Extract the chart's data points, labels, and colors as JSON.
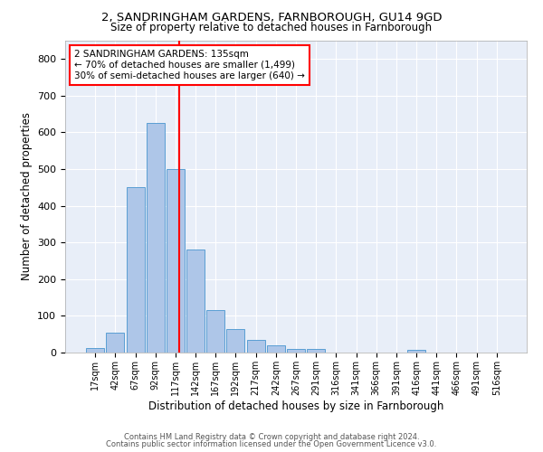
{
  "title1": "2, SANDRINGHAM GARDENS, FARNBOROUGH, GU14 9GD",
  "title2": "Size of property relative to detached houses in Farnborough",
  "xlabel": "Distribution of detached houses by size in Farnborough",
  "ylabel": "Number of detached properties",
  "footnote1": "Contains HM Land Registry data © Crown copyright and database right 2024.",
  "footnote2": "Contains public sector information licensed under the Open Government Licence v3.0.",
  "bin_labels": [
    "17sqm",
    "42sqm",
    "67sqm",
    "92sqm",
    "117sqm",
    "142sqm",
    "167sqm",
    "192sqm",
    "217sqm",
    "242sqm",
    "267sqm",
    "291sqm",
    "316sqm",
    "341sqm",
    "366sqm",
    "391sqm",
    "416sqm",
    "441sqm",
    "466sqm",
    "491sqm",
    "516sqm"
  ],
  "bar_values": [
    12,
    55,
    450,
    625,
    500,
    280,
    117,
    63,
    35,
    20,
    10,
    10,
    0,
    0,
    0,
    0,
    8,
    0,
    0,
    0,
    0
  ],
  "bar_color": "#aec6e8",
  "bar_edge_color": "#5a9fd4",
  "bg_color": "#e8eef8",
  "vline_color": "red",
  "annotation_text": "2 SANDRINGHAM GARDENS: 135sqm\n← 70% of detached houses are smaller (1,499)\n30% of semi-detached houses are larger (640) →",
  "annotation_box_color": "white",
  "annotation_box_edge": "red",
  "ylim": [
    0,
    850
  ],
  "yticks": [
    0,
    100,
    200,
    300,
    400,
    500,
    600,
    700,
    800
  ]
}
